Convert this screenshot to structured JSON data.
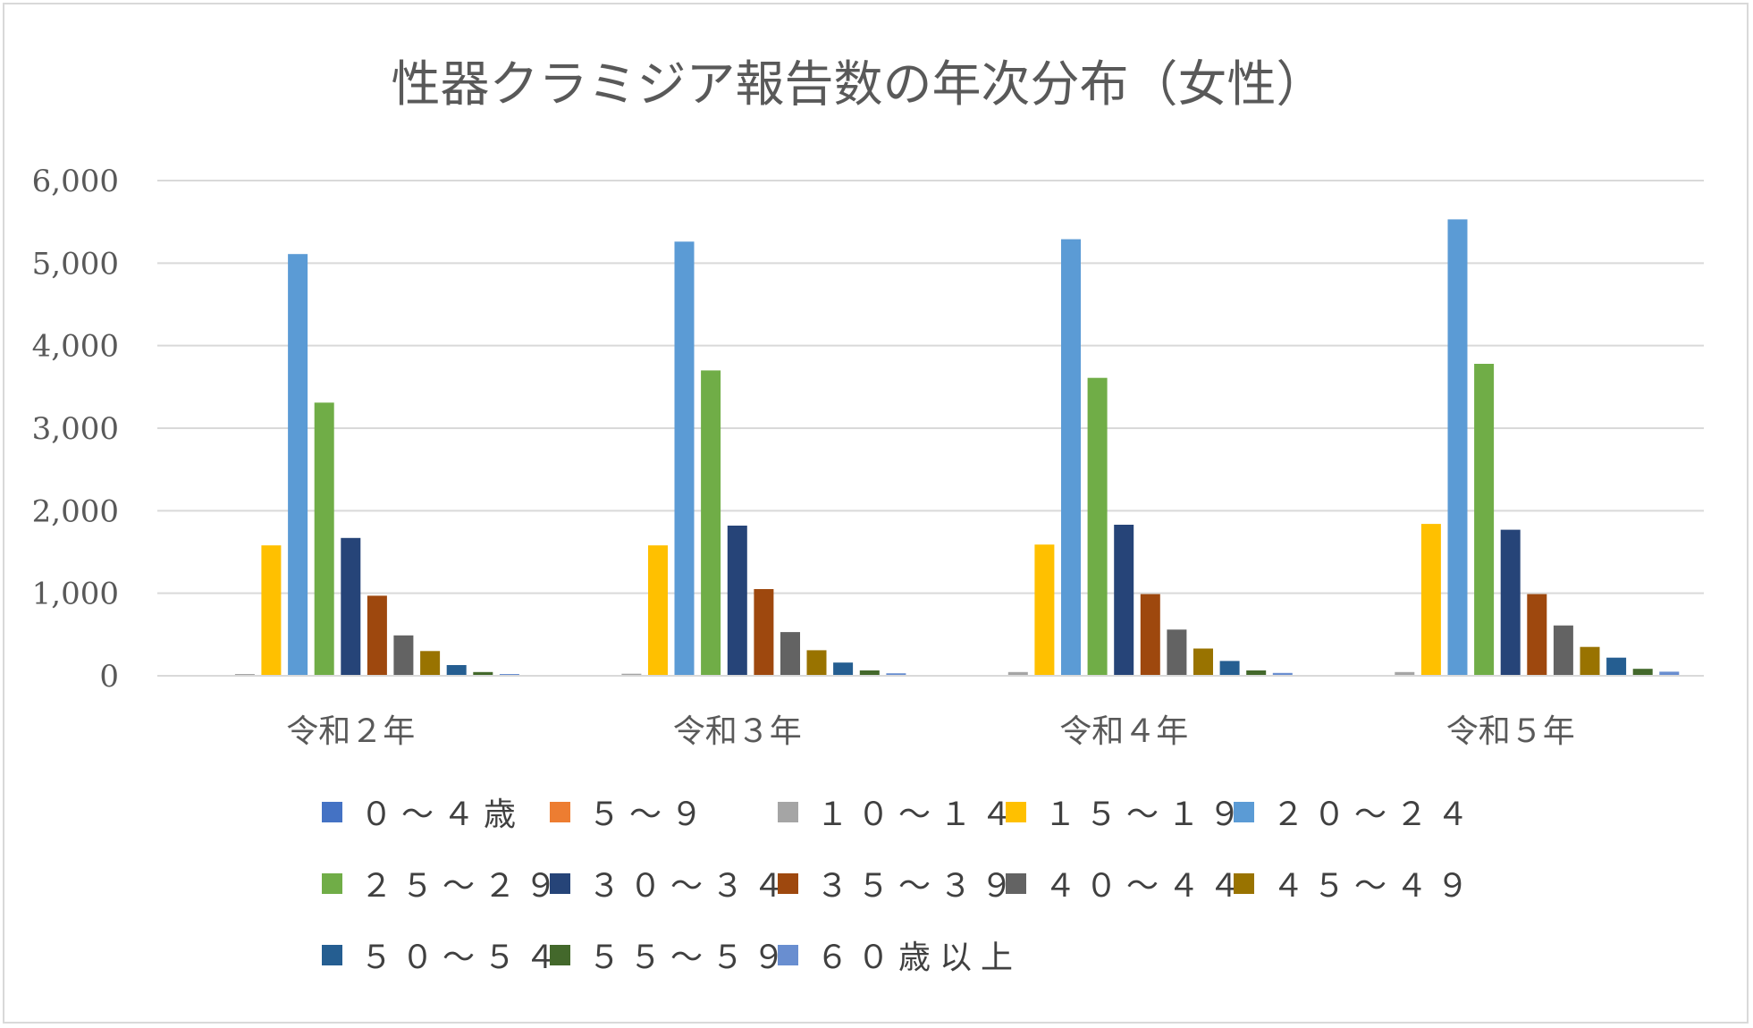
{
  "chart_data": {
    "type": "bar",
    "title": "性器クラミジア報告数の年次分布（女性）",
    "xlabel": "",
    "ylabel": "",
    "ylim": [
      0,
      6000
    ],
    "yticks": [
      0,
      1000,
      2000,
      3000,
      4000,
      5000,
      6000
    ],
    "ytick_labels": [
      "0",
      "1,000",
      "2,000",
      "3,000",
      "4,000",
      "5,000",
      "6,000"
    ],
    "grid": true,
    "legend_position": "bottom",
    "categories": [
      "令和２年",
      "令和３年",
      "令和４年",
      "令和５年"
    ],
    "series": [
      {
        "name": "０～４歳",
        "color": "#4472c4",
        "values": [
          0,
          0,
          0,
          0
        ]
      },
      {
        "name": "５～９",
        "color": "#ed7d31",
        "values": [
          0,
          0,
          0,
          0
        ]
      },
      {
        "name": "１０～１４",
        "color": "#a5a5a5",
        "values": [
          22,
          25,
          45,
          45
        ]
      },
      {
        "name": "１５～１９",
        "color": "#ffc000",
        "values": [
          1580,
          1580,
          1590,
          1840
        ]
      },
      {
        "name": "２０～２４",
        "color": "#5b9bd5",
        "values": [
          5110,
          5260,
          5290,
          5530
        ]
      },
      {
        "name": "２５～２９",
        "color": "#70ad47",
        "values": [
          3310,
          3700,
          3610,
          3780
        ]
      },
      {
        "name": "３０～３４",
        "color": "#264478",
        "values": [
          1670,
          1820,
          1830,
          1770
        ]
      },
      {
        "name": "３５～３９",
        "color": "#9e480e",
        "values": [
          970,
          1050,
          990,
          990
        ]
      },
      {
        "name": "４０～４４",
        "color": "#636363",
        "values": [
          490,
          530,
          560,
          610
        ]
      },
      {
        "name": "４５～４９",
        "color": "#997300",
        "values": [
          300,
          310,
          330,
          350
        ]
      },
      {
        "name": "５０～５４",
        "color": "#255e91",
        "values": [
          130,
          160,
          180,
          220
        ]
      },
      {
        "name": "５５～５９",
        "color": "#43682b",
        "values": [
          45,
          65,
          65,
          85
        ]
      },
      {
        "name": "６０歳以上",
        "color": "#698ed0",
        "values": [
          22,
          30,
          35,
          50
        ]
      }
    ]
  }
}
